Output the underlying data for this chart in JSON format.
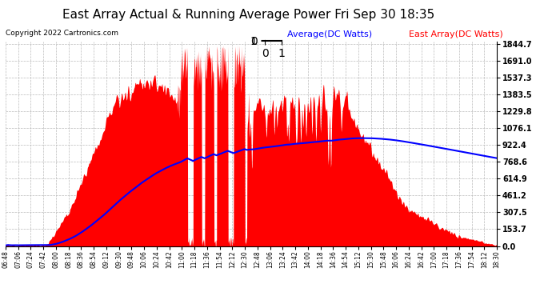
{
  "title": "East Array Actual & Running Average Power Fri Sep 30 18:35",
  "copyright": "Copyright 2022 Cartronics.com",
  "legend_avg": "Average(DC Watts)",
  "legend_east": "East Array(DC Watts)",
  "ymax": 1844.7,
  "ymin": 0.0,
  "yticks": [
    0.0,
    153.7,
    307.5,
    461.2,
    614.9,
    768.6,
    922.4,
    1076.1,
    1229.8,
    1383.5,
    1537.3,
    1691.0,
    1844.7
  ],
  "xtick_labels": [
    "06:48",
    "07:06",
    "07:24",
    "07:42",
    "08:00",
    "08:18",
    "08:36",
    "08:54",
    "09:12",
    "09:30",
    "09:48",
    "10:06",
    "10:24",
    "10:42",
    "11:00",
    "11:18",
    "11:36",
    "11:54",
    "12:12",
    "12:30",
    "12:48",
    "13:06",
    "13:24",
    "13:42",
    "14:00",
    "14:18",
    "14:36",
    "14:54",
    "15:12",
    "15:30",
    "15:48",
    "16:06",
    "16:24",
    "16:42",
    "17:00",
    "17:18",
    "17:36",
    "17:54",
    "18:12",
    "18:30"
  ],
  "bg_color": "#ffffff",
  "fill_color": "#ff0000",
  "avg_color": "#0000ff",
  "grid_color": "#bbbbbb",
  "title_color": "#000000",
  "copyright_color": "#000000",
  "legend_avg_color": "#0000ff",
  "legend_east_color": "#ff0000",
  "title_fontsize": 11,
  "copyright_fontsize": 6.5,
  "legend_fontsize": 8,
  "ytick_fontsize": 7,
  "xtick_fontsize": 5.5
}
